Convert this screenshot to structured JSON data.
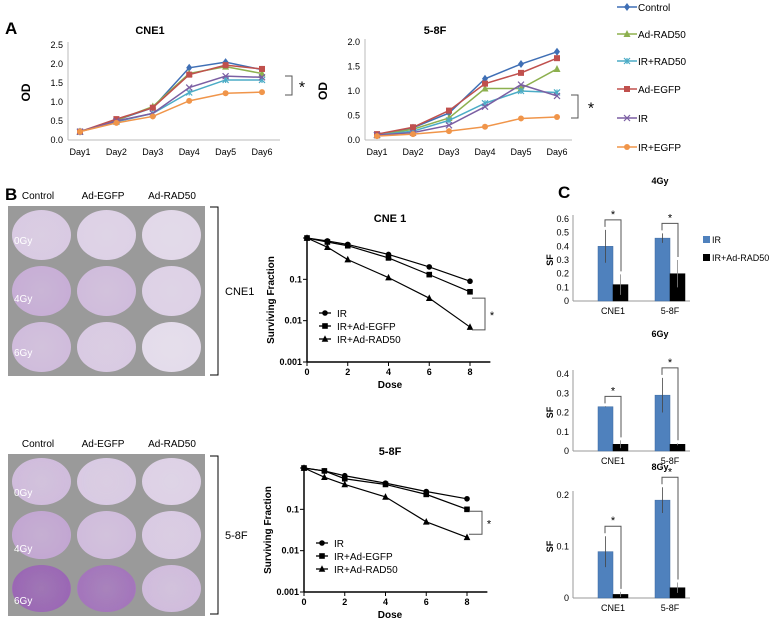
{
  "panel_labels": {
    "a": "A",
    "b": "B",
    "c": "C"
  },
  "colors": {
    "Control": "#3F6FB5",
    "Ad-RAD50": "#8DB04F",
    "IR+RAD50": "#4BACC6",
    "Ad-EGFP": "#C0504D",
    "IR": "#7B5FA3",
    "IR+EGFP": "#F0954A",
    "bar_ir": "#4F81BD",
    "bar_rad50": "#000000"
  },
  "growth_legend": [
    "Control",
    "Ad-RAD50",
    "IR+RAD50",
    "Ad-EGFP",
    "IR",
    "IR+EGFP"
  ],
  "plates": {
    "columns": [
      "Control",
      "Ad-EGFP",
      "Ad-RAD50"
    ],
    "rows": [
      "0Gy",
      "4Gy",
      "6Gy"
    ],
    "groups": [
      "CNE1",
      "5-8F"
    ],
    "colony_density_cne1": [
      [
        0.25,
        0.2,
        0.15
      ],
      [
        0.45,
        0.35,
        0.2
      ],
      [
        0.35,
        0.25,
        0.12
      ]
    ],
    "colony_density_58f": [
      [
        0.35,
        0.25,
        0.2
      ],
      [
        0.5,
        0.35,
        0.25
      ],
      [
        0.95,
        0.85,
        0.35
      ]
    ]
  },
  "significance": "*",
  "chart_data": [
    {
      "type": "line",
      "title": "CNE1",
      "ylabel": "OD",
      "xlabel": "",
      "categories": [
        "Day1",
        "Day2",
        "Day3",
        "Day4",
        "Day5",
        "Day6"
      ],
      "yticks": [
        "0.0",
        "0.5",
        "1.0",
        "1.5",
        "2.0",
        "2.5"
      ],
      "ylim": [
        0,
        2.5
      ],
      "series": [
        {
          "name": "Control",
          "marker": "diamond",
          "values": [
            0.22,
            0.52,
            0.85,
            1.9,
            2.05,
            1.85
          ]
        },
        {
          "name": "Ad-RAD50",
          "marker": "triangle",
          "values": [
            0.22,
            0.52,
            0.88,
            1.75,
            1.93,
            1.75
          ]
        },
        {
          "name": "IR+RAD50",
          "marker": "star",
          "values": [
            0.22,
            0.48,
            0.7,
            1.25,
            1.58,
            1.58
          ]
        },
        {
          "name": "Ad-EGFP",
          "marker": "square",
          "values": [
            0.22,
            0.55,
            0.85,
            1.72,
            1.97,
            1.87
          ]
        },
        {
          "name": "IR",
          "marker": "x",
          "values": [
            0.22,
            0.5,
            0.7,
            1.38,
            1.68,
            1.65
          ]
        },
        {
          "name": "IR+EGFP",
          "marker": "circle",
          "values": [
            0.22,
            0.45,
            0.62,
            1.03,
            1.23,
            1.26
          ]
        }
      ]
    },
    {
      "type": "line",
      "title": "5-8F",
      "ylabel": "OD",
      "xlabel": "",
      "categories": [
        "Day1",
        "Day2",
        "Day3",
        "Day4",
        "Day5",
        "Day6"
      ],
      "yticks": [
        "0.0",
        "0.5",
        "1.0",
        "1.5",
        "2.0"
      ],
      "ylim": [
        0,
        2.0
      ],
      "series": [
        {
          "name": "Control",
          "marker": "diamond",
          "values": [
            0.1,
            0.25,
            0.55,
            1.25,
            1.55,
            1.8
          ]
        },
        {
          "name": "Ad-RAD50",
          "marker": "triangle",
          "values": [
            0.1,
            0.22,
            0.45,
            1.05,
            1.05,
            1.45
          ]
        },
        {
          "name": "IR+RAD50",
          "marker": "star",
          "values": [
            0.1,
            0.18,
            0.4,
            0.75,
            1.0,
            0.97
          ]
        },
        {
          "name": "Ad-EGFP",
          "marker": "square",
          "values": [
            0.12,
            0.26,
            0.6,
            1.15,
            1.37,
            1.67
          ]
        },
        {
          "name": "IR",
          "marker": "x",
          "values": [
            0.1,
            0.15,
            0.3,
            0.68,
            1.13,
            0.9
          ]
        },
        {
          "name": "IR+EGFP",
          "marker": "circle",
          "values": [
            0.08,
            0.12,
            0.18,
            0.27,
            0.44,
            0.47
          ]
        }
      ]
    },
    {
      "type": "scatter",
      "title": "CNE 1",
      "xlabel": "Dose",
      "ylabel": "Surviving Fraction",
      "yscale": "log",
      "ylim": [
        0.001,
        1
      ],
      "xlim": [
        0,
        9
      ],
      "xticks": [
        "0",
        "2",
        "4",
        "6",
        "8"
      ],
      "yticks": [
        "0.1",
        "0.01",
        "0.001"
      ],
      "x": [
        0,
        1,
        2,
        4,
        6,
        8
      ],
      "series": [
        {
          "name": "IR",
          "marker": "circle",
          "values": [
            1,
            0.85,
            0.7,
            0.4,
            0.2,
            0.09
          ]
        },
        {
          "name": "IR+Ad-EGFP",
          "marker": "square",
          "values": [
            1,
            0.8,
            0.65,
            0.33,
            0.13,
            0.05
          ]
        },
        {
          "name": "IR+Ad-RAD50",
          "marker": "triangle",
          "values": [
            1,
            0.6,
            0.3,
            0.11,
            0.035,
            0.007
          ]
        }
      ]
    },
    {
      "type": "scatter",
      "title": "5-8F",
      "xlabel": "Dose",
      "ylabel": "Surviving Fraction",
      "yscale": "log",
      "ylim": [
        0.001,
        1
      ],
      "xlim": [
        0,
        9
      ],
      "xticks": [
        "0",
        "2",
        "4",
        "6",
        "8"
      ],
      "yticks": [
        "0.1",
        "0.01",
        "0.001"
      ],
      "x": [
        0,
        1,
        2,
        4,
        6,
        8
      ],
      "series": [
        {
          "name": "IR",
          "marker": "circle",
          "values": [
            1,
            0.85,
            0.65,
            0.43,
            0.27,
            0.18
          ]
        },
        {
          "name": "IR+Ad-EGFP",
          "marker": "square",
          "values": [
            1,
            0.85,
            0.55,
            0.4,
            0.23,
            0.1
          ]
        },
        {
          "name": "IR+Ad-RAD50",
          "marker": "triangle",
          "values": [
            1,
            0.6,
            0.4,
            0.2,
            0.05,
            0.021
          ]
        }
      ]
    },
    {
      "type": "bar",
      "title": "4Gy",
      "ylabel": "SF",
      "categories": [
        "CNE1",
        "5-8F"
      ],
      "yticks": [
        "0",
        "0.1",
        "0.2",
        "0.3",
        "0.4",
        "0.5",
        "0.6"
      ],
      "ylim": [
        0,
        0.6
      ],
      "series": [
        {
          "name": "IR",
          "values": [
            0.4,
            0.46
          ],
          "errors": [
            0.12,
            0.035
          ]
        },
        {
          "name": "IR+Ad-RAD50",
          "values": [
            0.12,
            0.2
          ],
          "errors": [
            0.075,
            0.1
          ]
        }
      ]
    },
    {
      "type": "bar",
      "title": "6Gy",
      "ylabel": "SF",
      "categories": [
        "CNE1",
        "5-8F"
      ],
      "yticks": [
        "0",
        "0.1",
        "0.2",
        "0.3",
        "0.4"
      ],
      "ylim": [
        0,
        0.4
      ],
      "series": [
        {
          "name": "IR",
          "values": [
            0.23,
            0.29
          ],
          "errors": [
            0.002,
            0.09
          ]
        },
        {
          "name": "IR+Ad-RAD50",
          "values": [
            0.035,
            0.035
          ],
          "errors": [
            0.02,
            0.005
          ]
        }
      ]
    },
    {
      "type": "bar",
      "title": "8Gy",
      "ylabel": "SF",
      "categories": [
        "CNE1",
        "5-8F"
      ],
      "yticks": [
        "0",
        "0.1",
        "0.2"
      ],
      "ylim": [
        0,
        0.2
      ],
      "series": [
        {
          "name": "IR",
          "values": [
            0.09,
            0.19
          ],
          "errors": [
            0.03,
            0.025
          ]
        },
        {
          "name": "IR+Ad-RAD50",
          "values": [
            0.007,
            0.02
          ],
          "errors": [
            0.005,
            0.01
          ]
        }
      ]
    }
  ],
  "bar_legend": [
    "IR",
    "IR+Ad-RAD50"
  ]
}
